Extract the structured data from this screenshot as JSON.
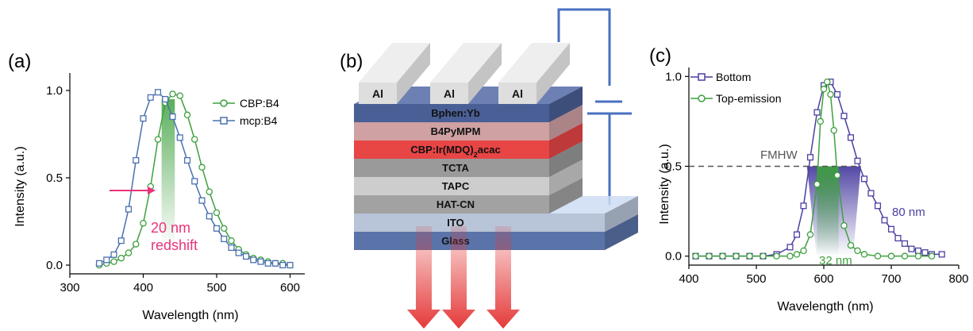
{
  "panel_a": {
    "label": "(a)",
    "annotation_line1": "20 nm",
    "annotation_line2": "redshift",
    "colors": {
      "cbp": "#3ea03e",
      "mcp": "#4a70b0",
      "arrow": "#e8337a"
    }
  },
  "panel_b": {
    "label": "(b)",
    "electrodes": [
      "Al",
      "Al",
      "Al"
    ],
    "layers": [
      {
        "name": "Bphen:Yb",
        "color": "#4a5f95"
      },
      {
        "name": "B4PyMPM",
        "color": "#cfa1a3"
      },
      {
        "name": "CBP:Ir(MDQ)2acac",
        "color": "#e84545"
      },
      {
        "name": "TCTA",
        "color": "#9a9a9a"
      },
      {
        "name": "TAPC",
        "color": "#cdcdcd"
      },
      {
        "name": "HAT-CN",
        "color": "#a2a2a2"
      },
      {
        "name": "ITO",
        "color": "#b8c4d8"
      },
      {
        "name": "Glass",
        "color": "#5a73a8"
      }
    ]
  },
  "panel_c": {
    "label": "(c)",
    "fwhm_label": "FMHW",
    "bottom_width": "80 nm",
    "top_width": "32 nm",
    "colors": {
      "bottom": "#4a3fa0",
      "top": "#3ea03e"
    }
  },
  "chart_data": [
    {
      "type": "line",
      "xlabel": "Wavelength (nm)",
      "ylabel": "Intensity (a.u.)",
      "xlim": [
        300,
        620
      ],
      "ylim": [
        -0.05,
        1.1
      ],
      "xticks": [
        300,
        400,
        500,
        600
      ],
      "yticks": [
        0.0,
        0.5,
        1.0
      ],
      "legend_position": "top-right",
      "series": [
        {
          "name": "CBP:B4",
          "marker": "circle",
          "color": "#3ea03e",
          "x": [
            340,
            350,
            360,
            370,
            380,
            390,
            400,
            410,
            420,
            430,
            440,
            450,
            460,
            470,
            480,
            490,
            500,
            510,
            520,
            530,
            540,
            550,
            560,
            570,
            580,
            590,
            600
          ],
          "y": [
            0.0,
            0.01,
            0.02,
            0.04,
            0.07,
            0.12,
            0.24,
            0.45,
            0.72,
            0.93,
            0.98,
            0.97,
            0.86,
            0.72,
            0.56,
            0.42,
            0.3,
            0.21,
            0.14,
            0.09,
            0.06,
            0.04,
            0.03,
            0.02,
            0.01,
            0.01,
            0.0
          ]
        },
        {
          "name": "mcp:B4",
          "marker": "square",
          "color": "#4a70b0",
          "x": [
            340,
            350,
            360,
            370,
            380,
            390,
            400,
            410,
            420,
            430,
            440,
            450,
            460,
            470,
            480,
            490,
            500,
            510,
            520,
            530,
            540,
            550,
            560,
            570,
            580,
            590,
            600
          ],
          "y": [
            0.01,
            0.03,
            0.06,
            0.14,
            0.32,
            0.6,
            0.84,
            0.96,
            0.99,
            0.95,
            0.85,
            0.73,
            0.6,
            0.48,
            0.37,
            0.28,
            0.21,
            0.15,
            0.1,
            0.07,
            0.05,
            0.03,
            0.02,
            0.01,
            0.01,
            0.0,
            0.0
          ]
        }
      ]
    },
    {
      "type": "line",
      "xlabel": "Wavelength (nm)",
      "ylabel": "Intensity (a.u.)",
      "xlim": [
        400,
        800
      ],
      "ylim": [
        -0.05,
        1.05
      ],
      "xticks": [
        400,
        500,
        600,
        700,
        800
      ],
      "yticks": [
        0.0,
        0.5,
        1.0
      ],
      "legend_position": "top-left",
      "fwhm_level": 0.5,
      "series": [
        {
          "name": "Bottom",
          "marker": "square",
          "color": "#4a3fa0",
          "x": [
            410,
            430,
            450,
            470,
            490,
            510,
            530,
            550,
            560,
            570,
            580,
            590,
            600,
            610,
            620,
            630,
            640,
            650,
            660,
            670,
            680,
            690,
            700,
            710,
            720,
            730,
            740,
            750,
            760,
            775
          ],
          "y": [
            0.0,
            0.0,
            0.0,
            0.0,
            0.0,
            0.0,
            0.01,
            0.05,
            0.12,
            0.28,
            0.55,
            0.8,
            0.95,
            0.97,
            0.9,
            0.78,
            0.66,
            0.53,
            0.43,
            0.35,
            0.28,
            0.2,
            0.15,
            0.1,
            0.07,
            0.04,
            0.03,
            0.02,
            0.01,
            0.01
          ]
        },
        {
          "name": "Top-emission",
          "marker": "circle",
          "color": "#3ea03e",
          "x": [
            410,
            430,
            450,
            470,
            490,
            510,
            530,
            550,
            560,
            570,
            580,
            590,
            595,
            600,
            605,
            610,
            615,
            620,
            630,
            640,
            650,
            660,
            680,
            700,
            720,
            740,
            760
          ],
          "y": [
            0.0,
            0.0,
            0.0,
            0.0,
            0.0,
            0.0,
            0.0,
            0.0,
            0.01,
            0.03,
            0.12,
            0.4,
            0.75,
            0.93,
            0.97,
            0.9,
            0.7,
            0.45,
            0.17,
            0.06,
            0.03,
            0.01,
            0.0,
            0.0,
            0.0,
            0.0,
            0.0
          ]
        }
      ]
    }
  ]
}
